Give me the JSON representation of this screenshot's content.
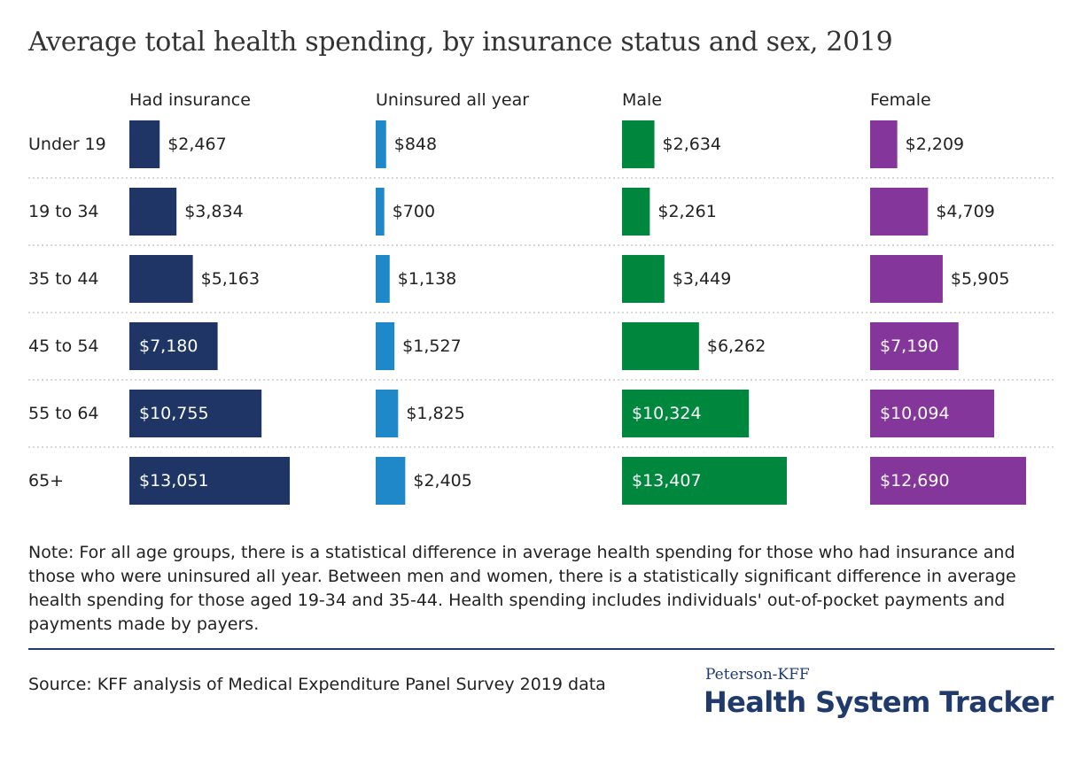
{
  "title": "Average total health spending, by insurance status and sex, 2019",
  "colors": {
    "had_insurance": "#1f3566",
    "uninsured": "#1e88c9",
    "male": "#00873e",
    "female": "#84369a",
    "divider": "#cccccc",
    "rule": "#1f3a6b"
  },
  "chart_data": {
    "type": "bar",
    "orientation": "horizontal",
    "categories": [
      "Under 19",
      "19 to 34",
      "35 to 44",
      "45 to 54",
      "55 to 64",
      "65+"
    ],
    "series": [
      {
        "name": "Had insurance",
        "values": [
          2467,
          3834,
          5163,
          7180,
          10755,
          13051
        ],
        "labels": [
          "$2,467",
          "$3,834",
          "$5,163",
          "$7,180",
          "$10,755",
          "$13,051"
        ]
      },
      {
        "name": "Uninsured all year",
        "values": [
          848,
          700,
          1138,
          1527,
          1825,
          2405
        ],
        "labels": [
          "$848",
          "$700",
          "$1,138",
          "$1,527",
          "$1,825",
          "$2,405"
        ]
      },
      {
        "name": "Male",
        "values": [
          2634,
          2261,
          3449,
          6262,
          10324,
          13407
        ],
        "labels": [
          "$2,634",
          "$2,261",
          "$3,449",
          "$6,262",
          "$10,324",
          "$13,407"
        ]
      },
      {
        "name": "Female",
        "values": [
          2209,
          4709,
          5905,
          7190,
          10094,
          12690
        ],
        "labels": [
          "$2,209",
          "$4,709",
          "$5,905",
          "$7,190",
          "$10,094",
          "$12,690"
        ]
      }
    ],
    "grid": false,
    "legend": "none"
  },
  "note": "Note: For all age groups, there is a statistical difference in average health spending for those who had insurance and those who were uninsured all year. Between men and women, there is a statistically significant difference in average health spending for those aged 19-34 and 35-44. Health spending includes individuals' out-of-pocket payments and payments made by payers.",
  "source": "Source: KFF analysis of Medical Expenditure Panel Survey 2019 data",
  "logo": {
    "small": "Peterson-KFF",
    "big": "Health System Tracker"
  }
}
